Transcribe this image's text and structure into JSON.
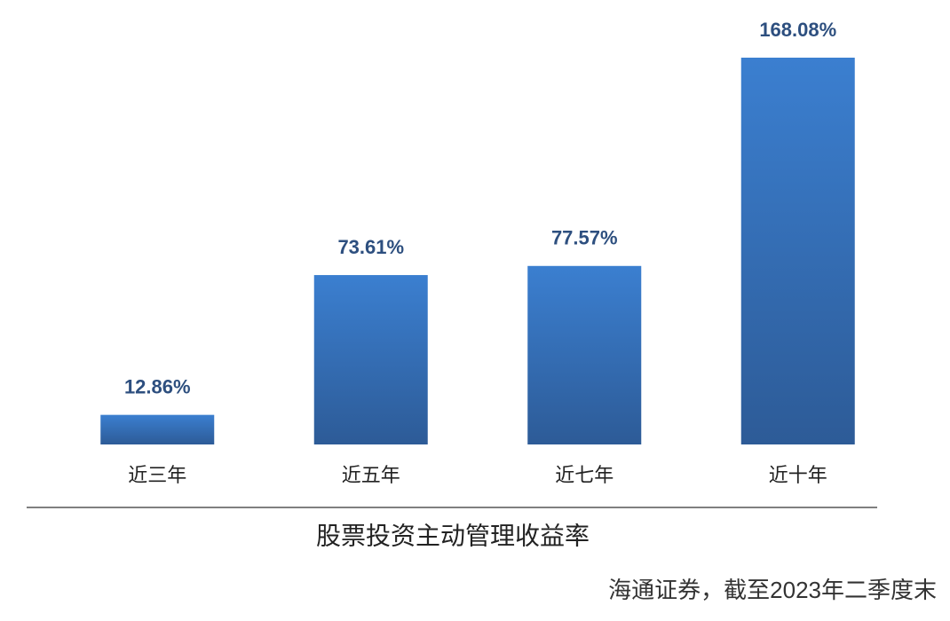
{
  "chart_data": {
    "type": "bar",
    "title": "股票投资主动管理收益率",
    "note": "海通证券，截至2023年二季度末",
    "categories": [
      "近三年",
      "近五年",
      "近七年",
      "近十年"
    ],
    "values": [
      12.86,
      73.61,
      77.57,
      168.08
    ],
    "value_labels": [
      "12.86%",
      "73.61%",
      "77.57%",
      "168.08%"
    ],
    "color": "#3a7bcc"
  }
}
